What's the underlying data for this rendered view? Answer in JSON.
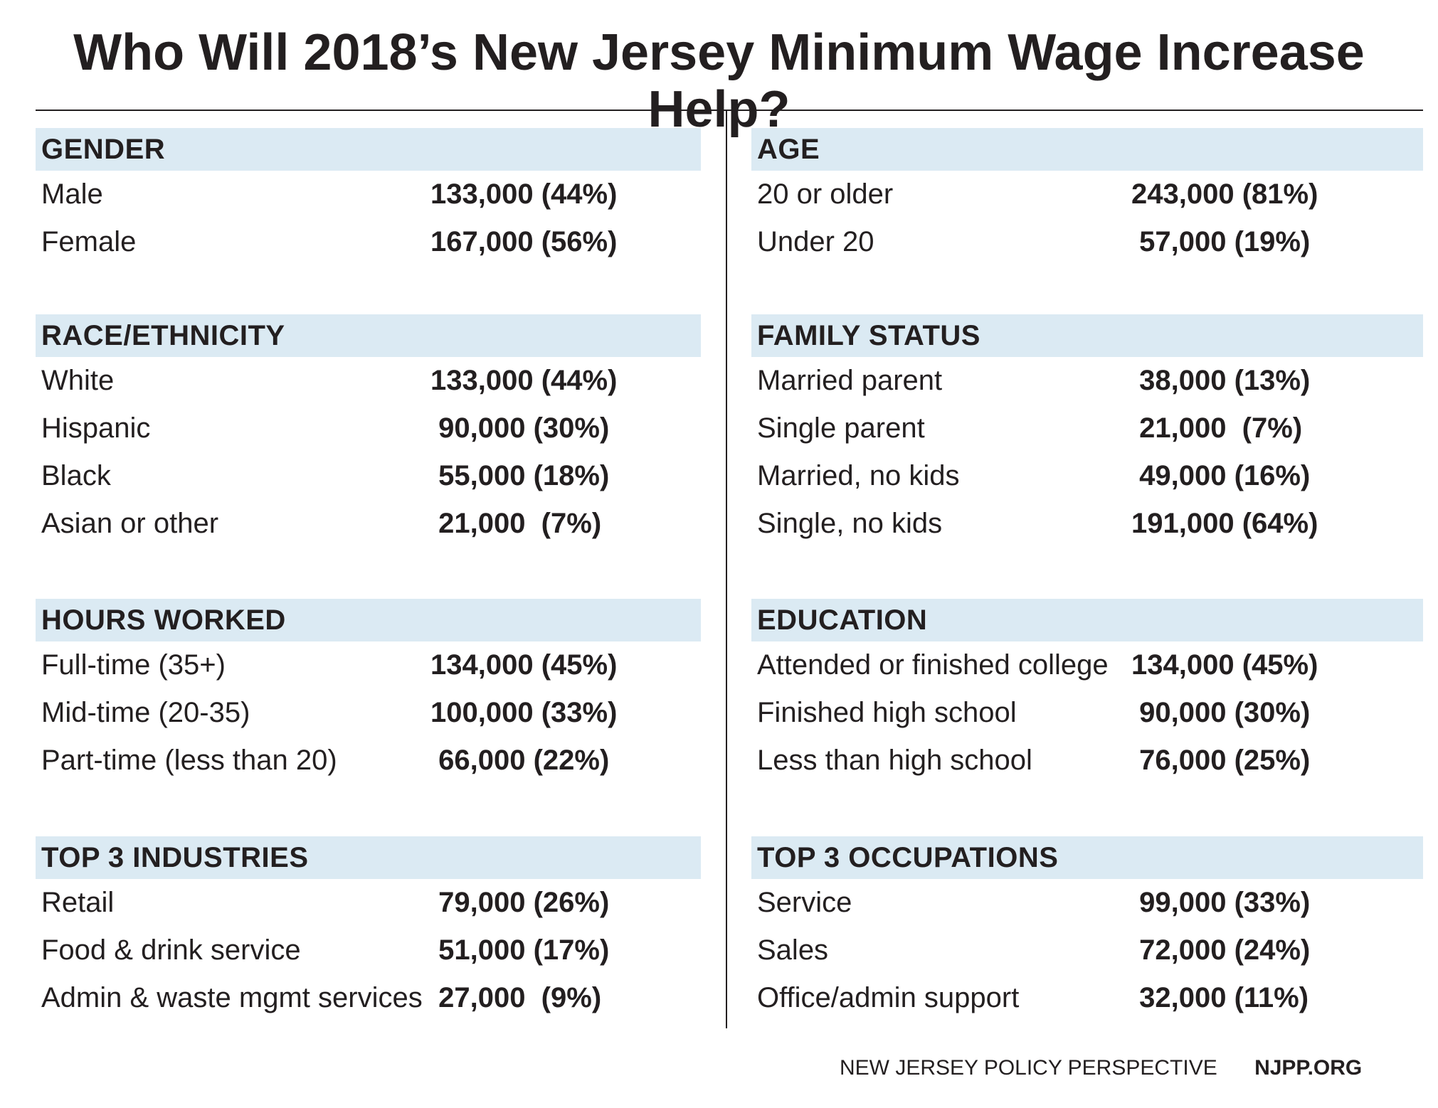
{
  "title": "Who Will 2018’s New Jersey Minimum Wage Increase Help?",
  "sections": {
    "gender": {
      "header": "GENDER",
      "rows": [
        {
          "label": "Male",
          "value": "133,000 (44%)"
        },
        {
          "label": "Female",
          "value": "167,000 (56%)"
        }
      ]
    },
    "age": {
      "header": "AGE",
      "rows": [
        {
          "label": "20 or older",
          "value": "243,000 (81%)"
        },
        {
          "label": "Under 20",
          "value": " 57,000 (19%)"
        }
      ]
    },
    "race": {
      "header": "RACE/ETHNICITY",
      "rows": [
        {
          "label": "White",
          "value": "133,000 (44%)"
        },
        {
          "label": "Hispanic",
          "value": " 90,000 (30%)"
        },
        {
          "label": "Black",
          "value": " 55,000 (18%)"
        },
        {
          "label": "Asian or other",
          "value": " 21,000  (7%)"
        }
      ]
    },
    "family": {
      "header": "FAMILY STATUS",
      "rows": [
        {
          "label": "Married parent",
          "value": " 38,000 (13%)"
        },
        {
          "label": "Single parent",
          "value": " 21,000  (7%)"
        },
        {
          "label": "Married, no kids",
          "value": " 49,000 (16%)"
        },
        {
          "label": "Single, no kids",
          "value": "191,000 (64%)"
        }
      ]
    },
    "hours": {
      "header": "HOURS WORKED",
      "rows": [
        {
          "label": "Full-time (35+)",
          "value": "134,000 (45%)"
        },
        {
          "label": "Mid-time (20-35)",
          "value": "100,000 (33%)"
        },
        {
          "label": "Part-time (less than 20)",
          "value": " 66,000 (22%)"
        }
      ]
    },
    "education": {
      "header": "EDUCATION",
      "rows": [
        {
          "label": "Attended or finished college",
          "value": "134,000 (45%)"
        },
        {
          "label": "Finished high school",
          "value": " 90,000 (30%)"
        },
        {
          "label": "Less than high school",
          "value": " 76,000 (25%)"
        }
      ]
    },
    "industries": {
      "header": "TOP 3 INDUSTRIES",
      "rows": [
        {
          "label": "Retail",
          "value": " 79,000 (26%)"
        },
        {
          "label": "Food & drink service",
          "value": " 51,000 (17%)"
        },
        {
          "label": "Admin & waste mgmt services",
          "value": " 27,000  (9%)"
        }
      ]
    },
    "occupations": {
      "header": "TOP 3 OCCUPATIONS",
      "rows": [
        {
          "label": "Service",
          "value": " 99,000 (33%)"
        },
        {
          "label": "Sales",
          "value": " 72,000 (24%)"
        },
        {
          "label": "Office/admin support",
          "value": " 32,000 (11%)"
        }
      ]
    }
  },
  "footer": {
    "organization": "NEW JERSEY POLICY PERSPECTIVE",
    "website": "NJPP.ORG"
  },
  "colors": {
    "header_band": "#dbeaf3",
    "text": "#231f20"
  }
}
